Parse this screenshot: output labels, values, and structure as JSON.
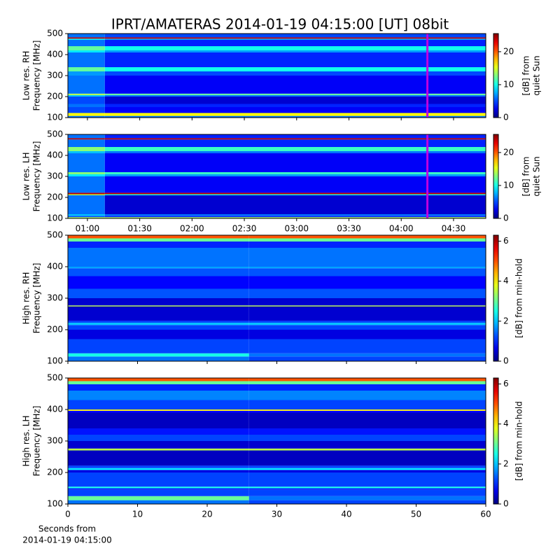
{
  "title": "IPRT/AMATERAS 2014-01-19 04:15:00 [UT]   08bit",
  "chart_data": [
    {
      "type": "heatmap",
      "ylabel": [
        "Low res. RH",
        "Frequency [MHz]"
      ],
      "colorbar_label": [
        "[dB] from",
        "quiet Sun"
      ],
      "clim": [
        0,
        25.5
      ],
      "cticks": [
        0,
        10,
        20
      ],
      "xlim": [
        48.8,
        288.5
      ],
      "xticks": [
        60,
        90,
        120,
        150,
        180,
        210,
        240,
        270
      ],
      "ylim": [
        100,
        500
      ],
      "yticks": [
        100,
        200,
        300,
        400,
        500
      ],
      "marker_x": 255,
      "marker_color": "#c000e0",
      "x_bins": [
        48.8,
        70,
        288.5
      ],
      "bins": [
        100,
        108,
        122,
        150,
        165,
        200,
        207,
        214,
        300,
        320,
        340,
        410,
        420,
        440,
        470,
        476,
        482,
        500
      ],
      "values": [
        [
          6,
          6
        ],
        [
          16,
          16
        ],
        [
          5,
          3
        ],
        [
          6,
          4
        ],
        [
          5,
          2
        ],
        [
          8,
          6
        ],
        [
          14,
          12
        ],
        [
          6,
          3
        ],
        [
          7,
          5
        ],
        [
          12,
          10
        ],
        [
          6,
          4
        ],
        [
          9,
          7
        ],
        [
          12,
          10
        ],
        [
          6,
          4
        ],
        [
          9,
          7
        ],
        [
          24,
          24
        ],
        [
          6,
          5
        ]
      ]
    },
    {
      "type": "heatmap",
      "ylabel": [
        "Low res. LH",
        "Frequency [MHz]"
      ],
      "colorbar_label": [
        "[dB] from",
        "quiet Sun"
      ],
      "clim": [
        0,
        25.5
      ],
      "cticks": [
        0,
        10,
        20
      ],
      "xlim": [
        48.8,
        288.5
      ],
      "xticks": [
        {
          "value": 60,
          "label": "01:00"
        },
        {
          "value": 90,
          "label": "01:30"
        },
        {
          "value": 120,
          "label": "02:00"
        },
        {
          "value": 150,
          "label": "02:30"
        },
        {
          "value": 180,
          "label": "03:00"
        },
        {
          "value": 210,
          "label": "03:30"
        },
        {
          "value": 240,
          "label": "04:00"
        },
        {
          "value": 270,
          "label": "04:30"
        }
      ],
      "ylim": [
        100,
        500
      ],
      "yticks": [
        100,
        200,
        300,
        400,
        500
      ],
      "marker_x": 255,
      "marker_color": "#c000e0",
      "x_bins": [
        48.8,
        70,
        288.5
      ],
      "bins": [
        100,
        106,
        112,
        120,
        210,
        215,
        222,
        300,
        310,
        320,
        410,
        420,
        440,
        476,
        482,
        500
      ],
      "values": [
        [
          14,
          14
        ],
        [
          5,
          4
        ],
        [
          8,
          6
        ],
        [
          6,
          2
        ],
        [
          14,
          10
        ],
        [
          24,
          24
        ],
        [
          6,
          3
        ],
        [
          9,
          7
        ],
        [
          13,
          11
        ],
        [
          6,
          3
        ],
        [
          8,
          6
        ],
        [
          13,
          11
        ],
        [
          6,
          4
        ],
        [
          24,
          24
        ],
        [
          6,
          4
        ]
      ]
    },
    {
      "type": "heatmap",
      "ylabel": [
        "High res. RH",
        "Frequency [MHz]"
      ],
      "colorbar_label": [
        "[dB] from min-hold"
      ],
      "clim": [
        0,
        6.3
      ],
      "cticks": [
        0,
        2,
        4,
        6
      ],
      "xlim": [
        0,
        60
      ],
      "xticks": [
        0,
        10,
        20,
        30,
        40,
        50,
        60
      ],
      "ylim": [
        100,
        500
      ],
      "yticks": [
        100,
        200,
        300,
        400,
        500
      ],
      "x_bins": [
        0,
        26,
        60
      ],
      "bins": [
        100,
        115,
        125,
        170,
        200,
        215,
        222,
        228,
        270,
        274,
        277,
        300,
        330,
        370,
        395,
        400,
        460,
        480,
        490,
        500
      ],
      "values": [
        [
          1.5,
          1.2
        ],
        [
          2.5,
          1.5
        ],
        [
          1.2,
          1.2
        ],
        [
          0.6,
          0.6
        ],
        [
          1.2,
          1.2
        ],
        [
          2,
          2
        ],
        [
          1.2,
          1.2
        ],
        [
          0.5,
          0.5
        ],
        [
          0.3,
          0.3
        ],
        [
          3.5,
          3.5
        ],
        [
          0.5,
          0.5
        ],
        [
          1.3,
          1.3
        ],
        [
          0.8,
          0.8
        ],
        [
          1.3,
          1.3
        ],
        [
          1.8,
          1.8
        ],
        [
          1.5,
          1.5
        ],
        [
          1,
          1
        ],
        [
          3,
          3
        ],
        [
          5,
          5
        ]
      ]
    },
    {
      "type": "heatmap",
      "ylabel": [
        "High res. LH",
        "Frequency [MHz]"
      ],
      "colorbar_label": [
        "[dB] from min-hold"
      ],
      "clim": [
        0,
        6.3
      ],
      "cticks": [
        0,
        2,
        4,
        6
      ],
      "xlim": [
        0,
        60
      ],
      "xticks": [
        0,
        10,
        20,
        30,
        40,
        50,
        60
      ],
      "xtick_labels": true,
      "xlabel": [
        "Seconds from",
        "2014-01-19 04:15:00"
      ],
      "ylim": [
        100,
        500
      ],
      "yticks": [
        100,
        200,
        300,
        400,
        500
      ],
      "x_bins": [
        0,
        26,
        60
      ],
      "bins": [
        100,
        112,
        125,
        145,
        150,
        155,
        200,
        208,
        214,
        222,
        270,
        276,
        300,
        320,
        340,
        390,
        396,
        400,
        430,
        460,
        480,
        490,
        500
      ],
      "values": [
        [
          1.5,
          1.2
        ],
        [
          3,
          1.5
        ],
        [
          1.2,
          1.2
        ],
        [
          1,
          1
        ],
        [
          2.5,
          2.5
        ],
        [
          1.2,
          1.2
        ],
        [
          0.6,
          0.6
        ],
        [
          2.2,
          2.2
        ],
        [
          1.2,
          1.2
        ],
        [
          0.4,
          0.4
        ],
        [
          3.5,
          3.5
        ],
        [
          0.5,
          0.5
        ],
        [
          1.2,
          1.2
        ],
        [
          0.9,
          0.9
        ],
        [
          0.4,
          0.4
        ],
        [
          0.8,
          0.8
        ],
        [
          4,
          4
        ],
        [
          1.2,
          1.2
        ],
        [
          1.6,
          1.6
        ],
        [
          1,
          1
        ],
        [
          3,
          3
        ],
        [
          5,
          5
        ]
      ]
    }
  ]
}
